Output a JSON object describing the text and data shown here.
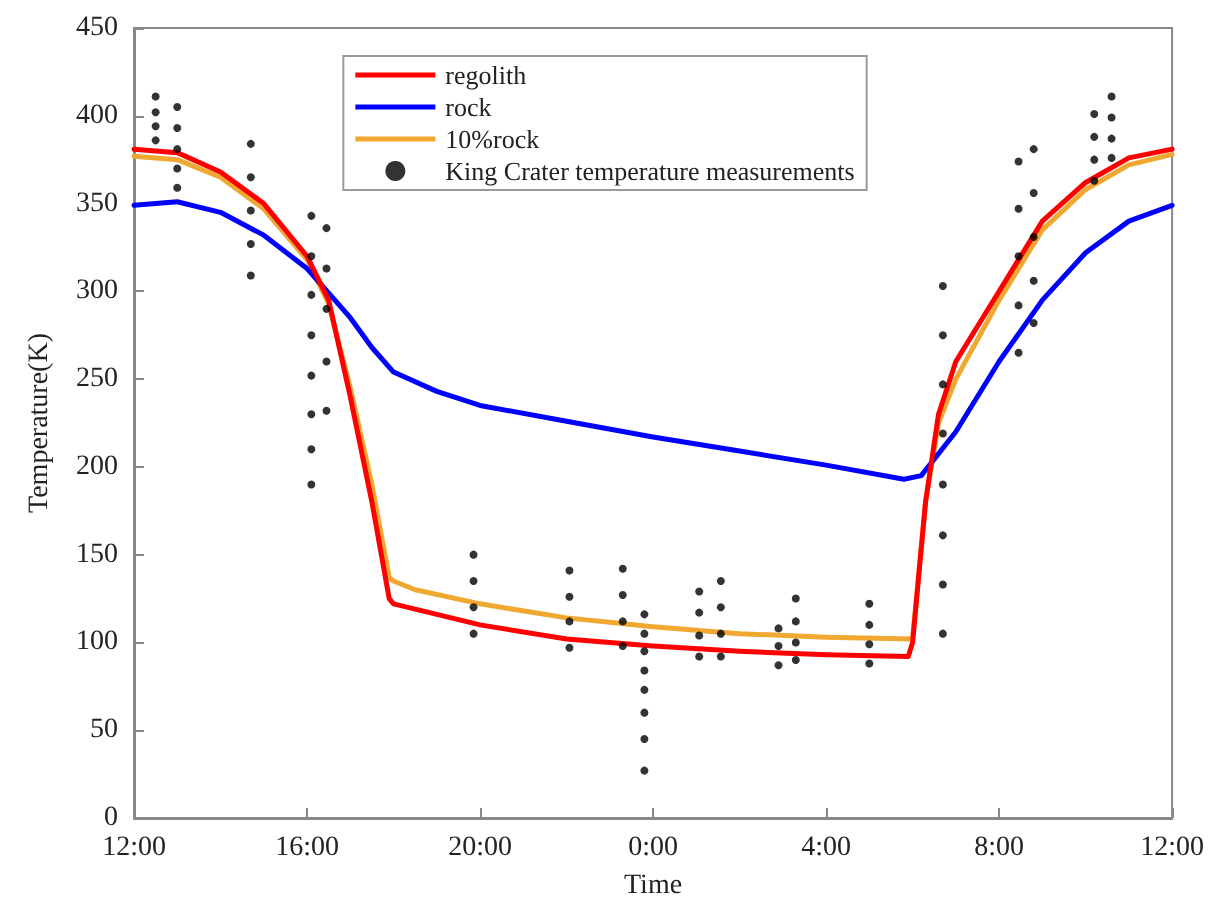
{
  "chart_data": {
    "type": "line",
    "xlabel": "Time",
    "ylabel": "Temperature(K)",
    "xlim": [
      "2000-01-01T12:00",
      "2000-01-02T12:00"
    ],
    "xticks": [
      {
        "value": "2000-01-01T12:00",
        "label": "12:00"
      },
      {
        "value": "2000-01-01T16:00",
        "label": "16:00"
      },
      {
        "value": "2000-01-01T20:00",
        "label": "20:00"
      },
      {
        "value": "2000-01-02T00:00",
        "label": "0:00"
      },
      {
        "value": "2000-01-02T04:00",
        "label": "4:00"
      },
      {
        "value": "2000-01-02T08:00",
        "label": "8:00"
      },
      {
        "value": "2000-01-02T12:00",
        "label": "12:00"
      }
    ],
    "ylim": [
      0,
      450
    ],
    "yticks": [
      0,
      50,
      100,
      150,
      200,
      250,
      300,
      350,
      400,
      450
    ],
    "grid": false,
    "legend": "top",
    "line_style": "solid",
    "marker": "none",
    "series": [
      {
        "name": "regolith",
        "color": "#ff0000",
        "x": [
          "2000-01-01T12:00",
          "2000-01-01T13:00",
          "2000-01-01T14:00",
          "2000-01-01T15:00",
          "2000-01-01T16:00",
          "2000-01-01T16:30",
          "2000-01-01T17:00",
          "2000-01-01T17:30",
          "2000-01-01T17:54",
          "2000-01-01T18:00",
          "2000-01-01T19:00",
          "2000-01-01T20:00",
          "2000-01-01T22:00",
          "2000-01-02T00:00",
          "2000-01-02T02:00",
          "2000-01-02T04:00",
          "2000-01-02T05:54",
          "2000-01-02T06:00",
          "2000-01-02T06:18",
          "2000-01-02T06:36",
          "2000-01-02T07:00",
          "2000-01-02T08:00",
          "2000-01-02T09:00",
          "2000-01-02T10:00",
          "2000-01-02T11:00",
          "2000-01-02T12:00"
        ],
        "values": [
          381,
          379,
          368,
          350,
          320,
          295,
          240,
          180,
          125,
          122,
          116,
          110,
          102,
          98,
          95,
          93,
          92,
          100,
          180,
          230,
          260,
          300,
          340,
          362,
          376,
          381
        ]
      },
      {
        "name": "rock",
        "color": "#0000ff",
        "x": [
          "2000-01-01T12:00",
          "2000-01-01T13:00",
          "2000-01-01T14:00",
          "2000-01-01T15:00",
          "2000-01-01T16:00",
          "2000-01-01T17:00",
          "2000-01-01T17:30",
          "2000-01-01T18:00",
          "2000-01-01T19:00",
          "2000-01-01T20:00",
          "2000-01-01T22:00",
          "2000-01-02T00:00",
          "2000-01-02T02:00",
          "2000-01-02T04:00",
          "2000-01-02T05:48",
          "2000-01-02T06:12",
          "2000-01-02T07:00",
          "2000-01-02T08:00",
          "2000-01-02T09:00",
          "2000-01-02T10:00",
          "2000-01-02T11:00",
          "2000-01-02T12:00"
        ],
        "values": [
          349,
          351,
          345,
          332,
          313,
          285,
          268,
          254,
          243,
          235,
          226,
          217,
          209,
          201,
          193,
          195,
          220,
          260,
          295,
          322,
          340,
          349
        ]
      },
      {
        "name": "10%rock",
        "color": "#f0a830",
        "x": [
          "2000-01-01T12:00",
          "2000-01-01T13:00",
          "2000-01-01T14:00",
          "2000-01-01T15:00",
          "2000-01-01T16:00",
          "2000-01-01T16:30",
          "2000-01-01T17:00",
          "2000-01-01T17:30",
          "2000-01-01T17:54",
          "2000-01-01T18:00",
          "2000-01-01T18:30",
          "2000-01-01T20:00",
          "2000-01-01T22:00",
          "2000-01-02T00:00",
          "2000-01-02T02:00",
          "2000-01-02T04:00",
          "2000-01-02T06:00",
          "2000-01-02T06:18",
          "2000-01-02T06:36",
          "2000-01-02T07:00",
          "2000-01-02T08:00",
          "2000-01-02T09:00",
          "2000-01-02T10:00",
          "2000-01-02T11:00",
          "2000-01-02T12:00"
        ],
        "values": [
          377,
          375,
          365,
          347,
          318,
          293,
          245,
          190,
          137,
          135,
          130,
          122,
          114,
          109,
          105,
          103,
          102,
          180,
          225,
          250,
          295,
          335,
          358,
          372,
          378
        ]
      },
      {
        "name": "King Crater temperature measurements",
        "type": "scatter",
        "marker": "circle",
        "color": "#000000",
        "x": [
          "2000-01-01T12:30",
          "2000-01-01T12:30",
          "2000-01-01T12:30",
          "2000-01-01T12:30",
          "2000-01-01T13:00",
          "2000-01-01T13:00",
          "2000-01-01T13:00",
          "2000-01-01T13:00",
          "2000-01-01T13:00",
          "2000-01-01T14:42",
          "2000-01-01T14:42",
          "2000-01-01T14:42",
          "2000-01-01T14:42",
          "2000-01-01T14:42",
          "2000-01-01T16:06",
          "2000-01-01T16:06",
          "2000-01-01T16:06",
          "2000-01-01T16:06",
          "2000-01-01T16:06",
          "2000-01-01T16:06",
          "2000-01-01T16:06",
          "2000-01-01T16:06",
          "2000-01-01T16:27",
          "2000-01-01T16:27",
          "2000-01-01T16:27",
          "2000-01-01T16:27",
          "2000-01-01T16:27",
          "2000-01-01T19:51",
          "2000-01-01T19:51",
          "2000-01-01T19:51",
          "2000-01-01T19:51",
          "2000-01-01T22:04",
          "2000-01-01T22:04",
          "2000-01-01T22:04",
          "2000-01-01T22:04",
          "2000-01-01T23:18",
          "2000-01-01T23:18",
          "2000-01-01T23:18",
          "2000-01-01T23:18",
          "2000-01-01T23:48",
          "2000-01-01T23:48",
          "2000-01-01T23:48",
          "2000-01-01T23:48",
          "2000-01-01T23:48",
          "2000-01-01T23:48",
          "2000-01-01T23:48",
          "2000-01-01T23:48",
          "2000-01-02T01:04",
          "2000-01-02T01:04",
          "2000-01-02T01:04",
          "2000-01-02T01:04",
          "2000-01-02T01:34",
          "2000-01-02T01:34",
          "2000-01-02T01:34",
          "2000-01-02T01:34",
          "2000-01-02T02:54",
          "2000-01-02T02:54",
          "2000-01-02T02:54",
          "2000-01-02T03:18",
          "2000-01-02T03:18",
          "2000-01-02T03:18",
          "2000-01-02T03:18",
          "2000-01-02T05:00",
          "2000-01-02T05:00",
          "2000-01-02T05:00",
          "2000-01-02T05:00",
          "2000-01-02T06:42",
          "2000-01-02T06:42",
          "2000-01-02T06:42",
          "2000-01-02T06:42",
          "2000-01-02T06:42",
          "2000-01-02T06:42",
          "2000-01-02T06:42",
          "2000-01-02T06:42",
          "2000-01-02T08:27",
          "2000-01-02T08:27",
          "2000-01-02T08:27",
          "2000-01-02T08:27",
          "2000-01-02T08:27",
          "2000-01-02T08:48",
          "2000-01-02T08:48",
          "2000-01-02T08:48",
          "2000-01-02T08:48",
          "2000-01-02T08:48",
          "2000-01-02T10:12",
          "2000-01-02T10:12",
          "2000-01-02T10:12",
          "2000-01-02T10:12",
          "2000-01-02T10:36",
          "2000-01-02T10:36",
          "2000-01-02T10:36",
          "2000-01-02T10:36"
        ],
        "values": [
          411,
          402,
          394,
          386,
          405,
          393,
          381,
          370,
          359,
          384,
          365,
          346,
          327,
          309,
          343,
          320,
          298,
          275,
          252,
          230,
          210,
          190,
          336,
          313,
          290,
          260,
          232,
          150,
          135,
          120,
          105,
          141,
          126,
          112,
          97,
          142,
          127,
          112,
          98,
          116,
          105,
          95,
          84,
          73,
          60,
          45,
          27,
          129,
          117,
          104,
          92,
          135,
          120,
          105,
          92,
          108,
          98,
          87,
          125,
          112,
          100,
          90,
          122,
          110,
          99,
          88,
          303,
          275,
          247,
          219,
          190,
          161,
          133,
          105,
          374,
          347,
          320,
          292,
          265,
          381,
          356,
          331,
          306,
          282,
          401,
          388,
          375,
          363,
          411,
          399,
          387,
          376
        ]
      }
    ]
  }
}
